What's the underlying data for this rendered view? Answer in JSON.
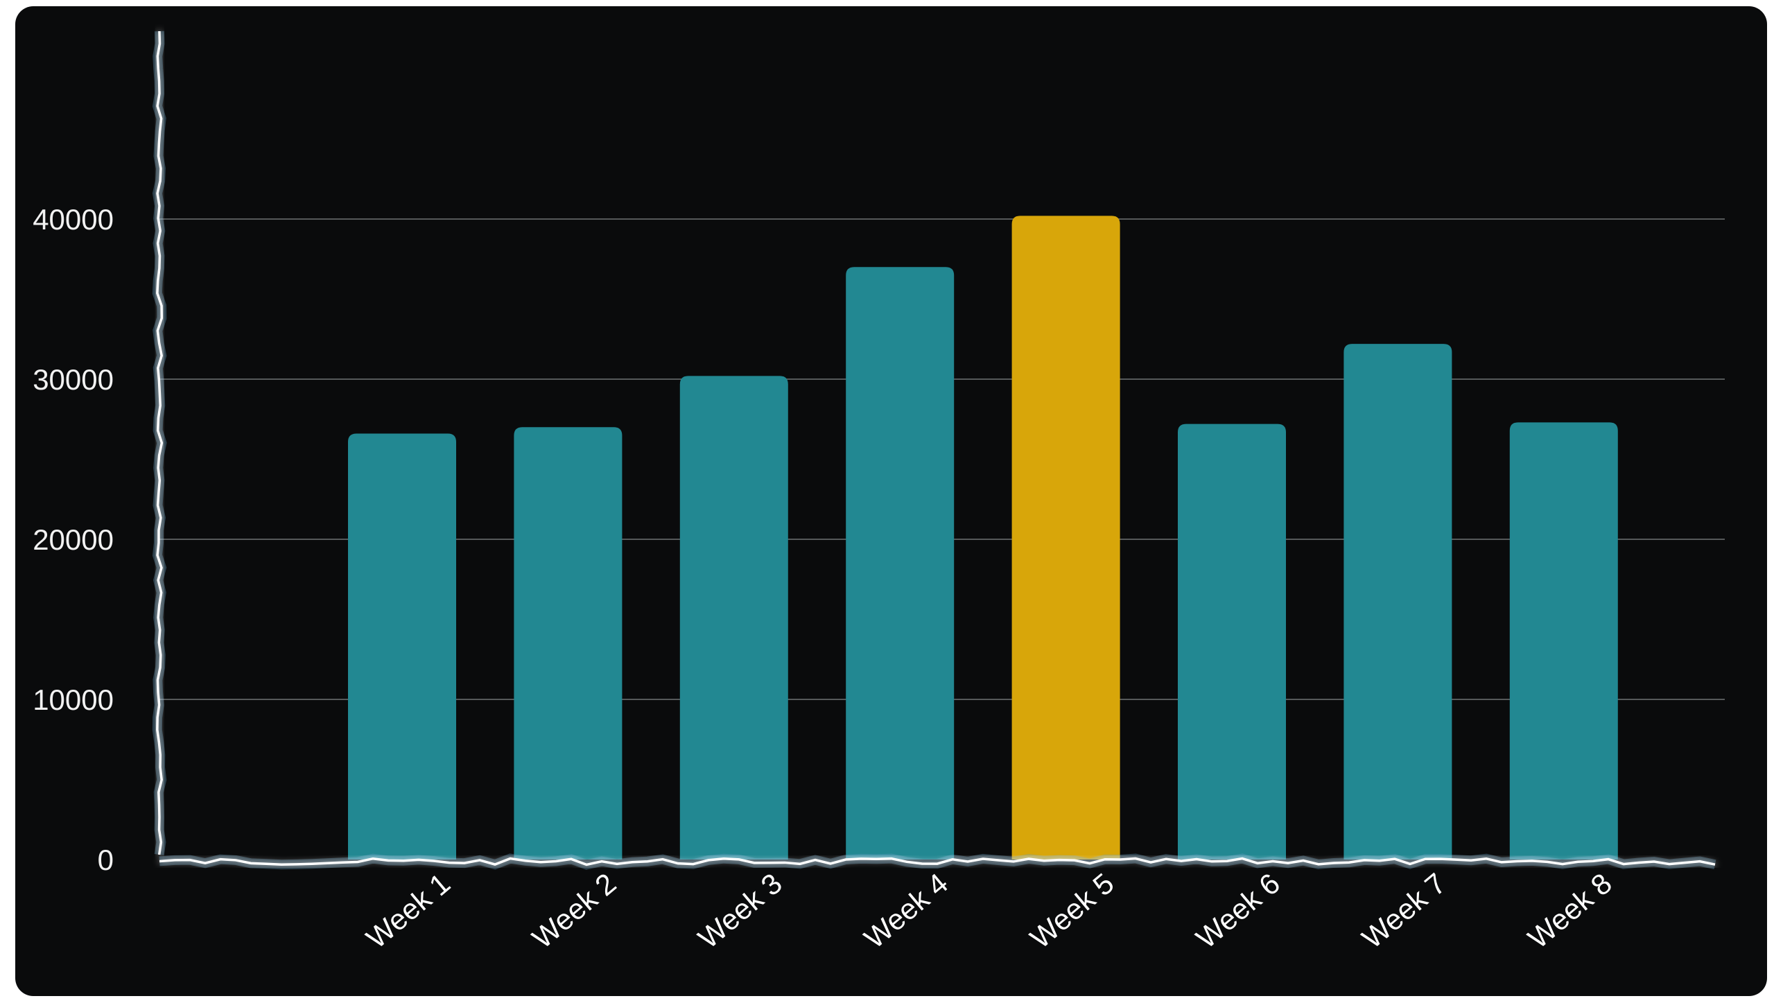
{
  "chart_data": {
    "type": "bar",
    "categories": [
      "Week 1",
      "Week 2",
      "Week 3",
      "Week 4",
      "Week 5",
      "Week 6",
      "Week 7",
      "Week 8"
    ],
    "values": [
      26600,
      27000,
      30200,
      37000,
      40200,
      27200,
      32200,
      27300
    ],
    "highlight_index": 4,
    "yticks": [
      0,
      10000,
      20000,
      30000,
      40000
    ],
    "ylim": [
      0,
      51000
    ],
    "grid": true,
    "title": "",
    "xlabel": "",
    "ylabel": ""
  },
  "colors": {
    "background": "#0a0b0c",
    "bar": "#228892",
    "bar_highlight": "#d8a60a",
    "grid": "#8a8d90",
    "axis": "#ffffff",
    "axis_glow": "#6fa6c8"
  }
}
